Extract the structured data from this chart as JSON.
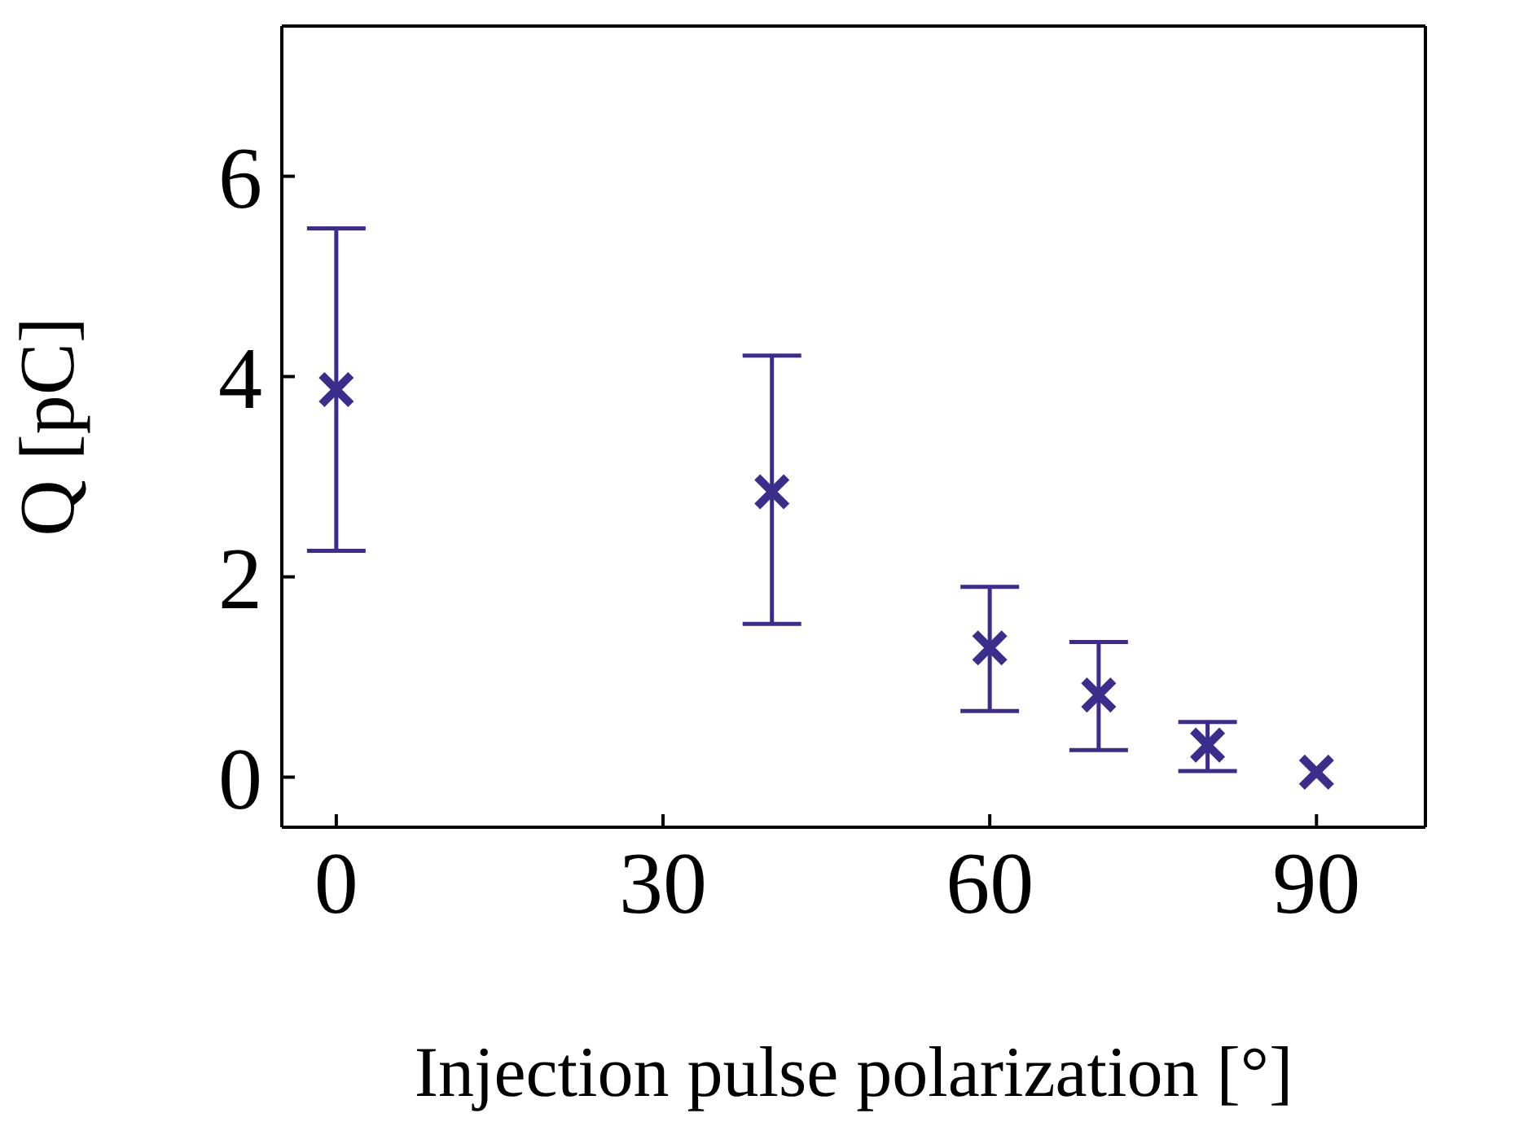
{
  "chart_data": {
    "type": "scatter",
    "xlabel": "Injection pulse polarization [°]",
    "ylabel": "Q [pC]",
    "x": [
      0,
      40,
      60,
      70,
      80,
      90
    ],
    "series": [
      {
        "color": "#3b2d8c",
        "values": [
          3.87,
          2.85,
          1.29,
          0.82,
          0.32,
          0.05
        ],
        "errors": [
          [
            2.26,
            5.48
          ],
          [
            1.53,
            4.21
          ],
          [
            0.66,
            1.9
          ],
          [
            0.27,
            1.35
          ],
          [
            0.06,
            0.55
          ],
          null
        ]
      }
    ],
    "xlim": [
      -5,
      100
    ],
    "xticks": [
      0,
      30,
      60,
      90
    ],
    "ylim": [
      -0.5,
      7.5
    ],
    "yticks": [
      0,
      2,
      4,
      6
    ],
    "legend": false,
    "marker": "cross"
  }
}
